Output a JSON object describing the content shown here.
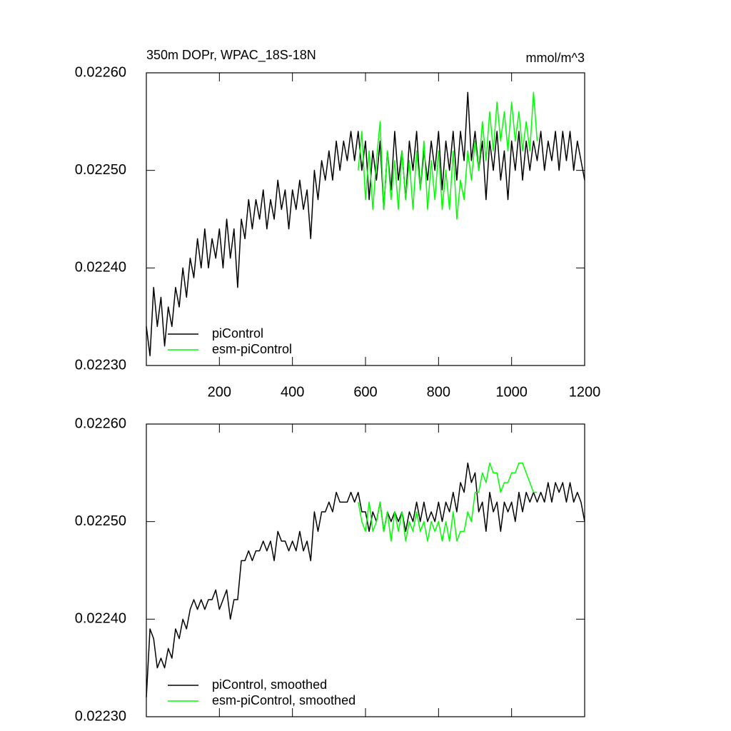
{
  "chart_data": [
    {
      "type": "line",
      "title": "350m DOPr, WPAC_18S-18N",
      "units": "mmol/m^3",
      "x": [
        0,
        10,
        20,
        30,
        40,
        50,
        60,
        70,
        80,
        90,
        100,
        110,
        120,
        130,
        140,
        150,
        160,
        170,
        180,
        190,
        200,
        210,
        220,
        230,
        240,
        250,
        260,
        270,
        280,
        290,
        300,
        310,
        320,
        330,
        340,
        350,
        360,
        370,
        380,
        390,
        400,
        410,
        420,
        430,
        440,
        450,
        460,
        470,
        480,
        490,
        500,
        510,
        520,
        530,
        540,
        550,
        560,
        570,
        580,
        590,
        600,
        610,
        620,
        630,
        640,
        650,
        660,
        670,
        680,
        690,
        700,
        710,
        720,
        730,
        740,
        750,
        760,
        770,
        780,
        790,
        800,
        810,
        820,
        830,
        840,
        850,
        860,
        870,
        880,
        890,
        900,
        910,
        920,
        930,
        940,
        950,
        960,
        970,
        980,
        990,
        1000,
        1010,
        1020,
        1030,
        1040,
        1050,
        1060,
        1070,
        1080,
        1090,
        1100,
        1110,
        1120,
        1130,
        1140,
        1150,
        1160,
        1170,
        1180,
        1190,
        1200
      ],
      "series": [
        {
          "name": "piControl",
          "color": "#000000",
          "values": [
            0.02234,
            0.02231,
            0.02238,
            0.02234,
            0.02237,
            0.02232,
            0.02236,
            0.02234,
            0.02238,
            0.02236,
            0.0224,
            0.02237,
            0.02241,
            0.02239,
            0.02243,
            0.0224,
            0.02244,
            0.0224,
            0.02243,
            0.02241,
            0.02244,
            0.0224,
            0.02245,
            0.02241,
            0.02244,
            0.02238,
            0.02245,
            0.02243,
            0.02247,
            0.02244,
            0.02247,
            0.02245,
            0.02248,
            0.02244,
            0.02247,
            0.02245,
            0.02249,
            0.02246,
            0.02248,
            0.02244,
            0.02248,
            0.02246,
            0.02249,
            0.02246,
            0.02248,
            0.02243,
            0.0225,
            0.02247,
            0.02251,
            0.02249,
            0.02252,
            0.02249,
            0.02253,
            0.0225,
            0.02253,
            0.02251,
            0.02254,
            0.02251,
            0.02254,
            0.0225,
            0.02253,
            0.02247,
            0.02252,
            0.02249,
            0.02253,
            0.02246,
            0.02252,
            0.02248,
            0.02254,
            0.02249,
            0.02252,
            0.02247,
            0.02253,
            0.0225,
            0.02254,
            0.02248,
            0.02252,
            0.02249,
            0.02253,
            0.0225,
            0.02254,
            0.02248,
            0.02253,
            0.0225,
            0.02254,
            0.02249,
            0.02254,
            0.02251,
            0.02258,
            0.02251,
            0.02254,
            0.0225,
            0.02253,
            0.02247,
            0.02253,
            0.0225,
            0.02254,
            0.02249,
            0.02252,
            0.02247,
            0.02253,
            0.0225,
            0.02254,
            0.02249,
            0.02253,
            0.0225,
            0.02253,
            0.02251,
            0.02254,
            0.0225,
            0.02253,
            0.02251,
            0.02254,
            0.0225,
            0.02254,
            0.02251,
            0.02254,
            0.0225,
            0.02253,
            0.02251,
            0.02249
          ]
        },
        {
          "name": "esm-piControl",
          "color": "#00ff00",
          "values": [
            null,
            null,
            null,
            null,
            null,
            null,
            null,
            null,
            null,
            null,
            null,
            null,
            null,
            null,
            null,
            null,
            null,
            null,
            null,
            null,
            null,
            null,
            null,
            null,
            null,
            null,
            null,
            null,
            null,
            null,
            null,
            null,
            null,
            null,
            null,
            null,
            null,
            null,
            null,
            null,
            null,
            null,
            null,
            null,
            null,
            null,
            null,
            null,
            null,
            null,
            null,
            null,
            null,
            null,
            null,
            null,
            null,
            null,
            0.0225,
            0.02254,
            0.02247,
            0.02252,
            0.02246,
            0.02251,
            0.02255,
            0.02246,
            0.02252,
            0.02247,
            0.02251,
            0.02246,
            0.02252,
            0.02247,
            0.02251,
            0.02246,
            0.02252,
            0.02248,
            0.02253,
            0.02246,
            0.02251,
            0.02247,
            0.02252,
            0.02246,
            0.0225,
            0.02246,
            0.02252,
            0.02245,
            0.02249,
            0.02247,
            0.02252,
            0.02249,
            0.02253,
            0.0225,
            0.02255,
            0.02251,
            0.02256,
            0.02252,
            0.02257,
            0.02253,
            0.02256,
            0.02252,
            0.02257,
            0.02253,
            0.02256,
            0.02252,
            0.02255,
            0.02252,
            0.02258,
            0.02253,
            null,
            null,
            null,
            null,
            null,
            null,
            null,
            null,
            null,
            null,
            null,
            null,
            null
          ]
        }
      ],
      "xlim": [
        0,
        1200
      ],
      "xticks": [
        200,
        400,
        600,
        800,
        1000,
        1200
      ],
      "ylim": [
        0.0223,
        0.0226
      ],
      "yticks": [
        {
          "value": 0.0223,
          "label": "0.02230"
        },
        {
          "value": 0.0224,
          "label": "0.02240"
        },
        {
          "value": 0.0225,
          "label": "0.02250"
        },
        {
          "value": 0.0226,
          "label": "0.02260"
        }
      ],
      "legend": "lower left"
    },
    {
      "type": "line",
      "x": [
        0,
        10,
        20,
        30,
        40,
        50,
        60,
        70,
        80,
        90,
        100,
        110,
        120,
        130,
        140,
        150,
        160,
        170,
        180,
        190,
        200,
        210,
        220,
        230,
        240,
        250,
        260,
        270,
        280,
        290,
        300,
        310,
        320,
        330,
        340,
        350,
        360,
        370,
        380,
        390,
        400,
        410,
        420,
        430,
        440,
        450,
        460,
        470,
        480,
        490,
        500,
        510,
        520,
        530,
        540,
        550,
        560,
        570,
        580,
        590,
        600,
        610,
        620,
        630,
        640,
        650,
        660,
        670,
        680,
        690,
        700,
        710,
        720,
        730,
        740,
        750,
        760,
        770,
        780,
        790,
        800,
        810,
        820,
        830,
        840,
        850,
        860,
        870,
        880,
        890,
        900,
        910,
        920,
        930,
        940,
        950,
        960,
        970,
        980,
        990,
        1000,
        1010,
        1020,
        1030,
        1040,
        1050,
        1060,
        1070,
        1080,
        1090,
        1100,
        1110,
        1120,
        1130,
        1140,
        1150,
        1160,
        1170,
        1180,
        1190,
        1200
      ],
      "series": [
        {
          "name": "piControl, smoothed",
          "color": "#000000",
          "values": [
            0.02232,
            0.02239,
            0.02238,
            0.02235,
            0.02236,
            0.02235,
            0.02237,
            0.02236,
            0.02239,
            0.02238,
            0.0224,
            0.02239,
            0.02241,
            0.02242,
            0.02241,
            0.02242,
            0.02241,
            0.02242,
            0.02242,
            0.02243,
            0.02241,
            0.02242,
            0.02243,
            0.0224,
            0.02242,
            0.02242,
            0.02246,
            0.02246,
            0.02247,
            0.02246,
            0.02247,
            0.02247,
            0.02248,
            0.02247,
            0.02248,
            0.02246,
            0.02249,
            0.02248,
            0.02248,
            0.02247,
            0.02248,
            0.02247,
            0.02249,
            0.02247,
            0.02248,
            0.02246,
            0.02251,
            0.02249,
            0.02251,
            0.02251,
            0.02252,
            0.02251,
            0.02253,
            0.02252,
            0.02252,
            0.02252,
            0.02253,
            0.02252,
            0.02253,
            0.02251,
            0.02251,
            0.02249,
            0.02251,
            0.0225,
            0.02252,
            0.02249,
            0.02251,
            0.0225,
            0.02251,
            0.0225,
            0.02251,
            0.02249,
            0.02251,
            0.0225,
            0.02252,
            0.0225,
            0.02252,
            0.0225,
            0.02251,
            0.0225,
            0.02252,
            0.0225,
            0.02252,
            0.02251,
            0.02253,
            0.02251,
            0.02254,
            0.02253,
            0.02256,
            0.02254,
            0.02255,
            0.02251,
            0.02252,
            0.02249,
            0.02253,
            0.02251,
            0.02252,
            0.02249,
            0.02252,
            0.02251,
            0.02252,
            0.0225,
            0.02253,
            0.02251,
            0.02253,
            0.02252,
            0.02253,
            0.02252,
            0.02253,
            0.02252,
            0.02254,
            0.02252,
            0.02254,
            0.02253,
            0.02254,
            0.02252,
            0.02254,
            0.02252,
            0.02253,
            0.02252,
            0.0225
          ]
        },
        {
          "name": "esm-piControl, smoothed",
          "color": "#00ff00",
          "values": [
            null,
            null,
            null,
            null,
            null,
            null,
            null,
            null,
            null,
            null,
            null,
            null,
            null,
            null,
            null,
            null,
            null,
            null,
            null,
            null,
            null,
            null,
            null,
            null,
            null,
            null,
            null,
            null,
            null,
            null,
            null,
            null,
            null,
            null,
            null,
            null,
            null,
            null,
            null,
            null,
            null,
            null,
            null,
            null,
            null,
            null,
            null,
            null,
            null,
            null,
            null,
            null,
            null,
            null,
            null,
            null,
            null,
            null,
            0.02252,
            0.0225,
            0.02249,
            0.02252,
            0.02249,
            0.0225,
            0.02252,
            0.02249,
            0.02251,
            0.02248,
            0.02251,
            0.02249,
            0.02251,
            0.02248,
            0.0225,
            0.02249,
            0.02251,
            0.02249,
            0.0225,
            0.02248,
            0.0225,
            0.02249,
            0.0225,
            0.02248,
            0.0225,
            0.02248,
            0.02251,
            0.02248,
            0.02249,
            0.02249,
            0.02251,
            0.0225,
            0.02253,
            0.02253,
            0.02255,
            0.02254,
            0.02256,
            0.02255,
            0.02255,
            0.02253,
            0.02254,
            0.02254,
            0.02255,
            0.02255,
            0.02256,
            0.02256,
            0.02255,
            0.02254,
            0.02253,
            0.02253,
            null,
            null,
            null,
            null,
            null,
            null,
            null,
            null,
            null,
            null,
            null,
            null,
            null
          ]
        }
      ],
      "xlim": [
        0,
        1200
      ],
      "xticks": [
        200,
        400,
        600,
        800,
        1000,
        1200
      ],
      "ylim": [
        0.0223,
        0.0226
      ],
      "yticks": [
        {
          "value": 0.0223,
          "label": "0.02230"
        },
        {
          "value": 0.0224,
          "label": "0.02240"
        },
        {
          "value": 0.0225,
          "label": "0.02250"
        },
        {
          "value": 0.0226,
          "label": "0.02260"
        }
      ],
      "legend": "lower left"
    }
  ]
}
